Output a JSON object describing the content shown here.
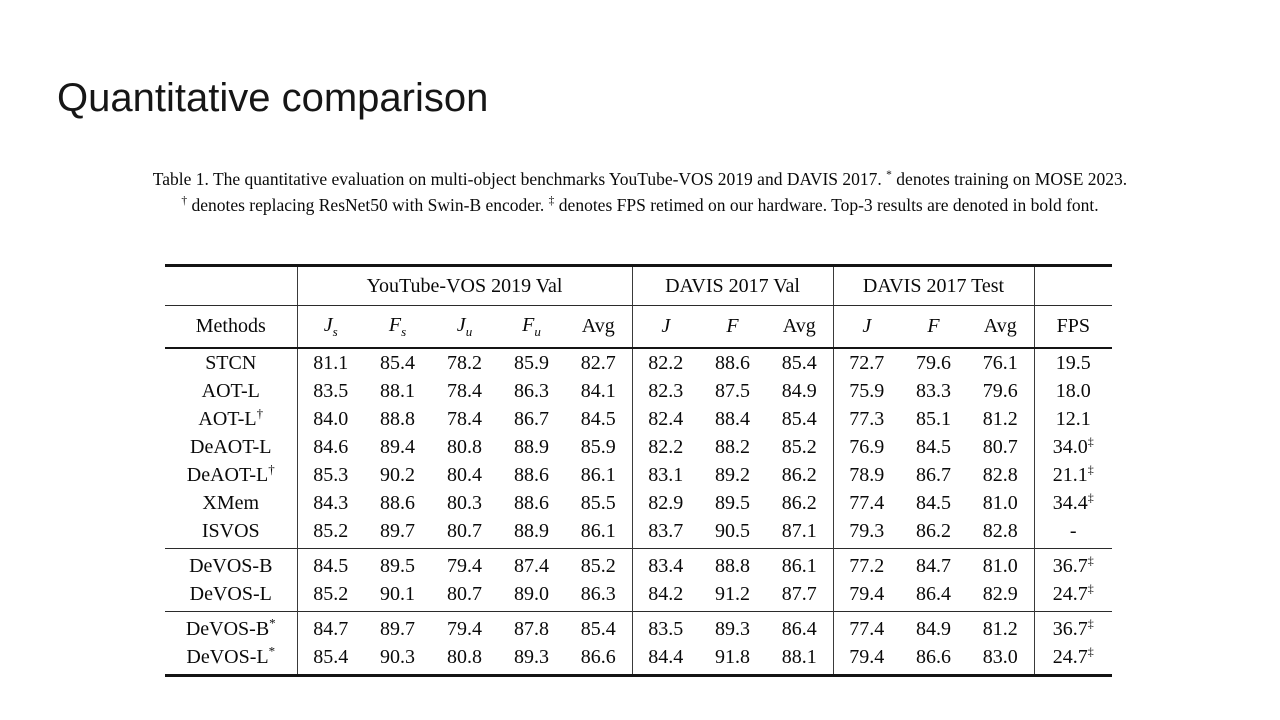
{
  "slide": {
    "title": "Quantitative comparison"
  },
  "caption": {
    "lines": [
      [
        {
          "t": "Table 1. The quantitative evaluation on multi-object benchmarks YouTube-VOS 2019 and DAVIS 2017. "
        },
        {
          "t": "*",
          "sup": true
        },
        {
          "t": " denotes training on MOSE 2023."
        }
      ],
      [
        {
          "t": "†",
          "sup": true
        },
        {
          "t": " denotes replacing ResNet50 with Swin-B encoder. "
        },
        {
          "t": "‡",
          "sup": true
        },
        {
          "t": " denotes FPS retimed on our hardware. Top-3 results are denoted in bold font."
        }
      ]
    ]
  },
  "table": {
    "group_headers": [
      {
        "label": "",
        "span": 1,
        "sep": false
      },
      {
        "label": "YouTube-VOS 2019 Val",
        "span": 5,
        "sep": true
      },
      {
        "label": "DAVIS 2017 Val",
        "span": 3,
        "sep": true
      },
      {
        "label": "DAVIS 2017 Test",
        "span": 3,
        "sep": true
      },
      {
        "label": "",
        "span": 1,
        "sep": true
      }
    ],
    "metric_headers": [
      {
        "text": "Methods"
      },
      {
        "math": "J",
        "sub": "s"
      },
      {
        "math": "F",
        "sub": "s"
      },
      {
        "math": "J",
        "sub": "u"
      },
      {
        "math": "F",
        "sub": "u"
      },
      {
        "text": "Avg"
      },
      {
        "math": "J"
      },
      {
        "math": "F"
      },
      {
        "text": "Avg"
      },
      {
        "math": "J"
      },
      {
        "math": "F"
      },
      {
        "text": "Avg"
      },
      {
        "text": "FPS"
      }
    ],
    "groups": [
      {
        "rows": [
          {
            "method": {
              "name": "STCN"
            },
            "cells": [
              {
                "v": "81.1"
              },
              {
                "v": "85.4"
              },
              {
                "v": "78.2"
              },
              {
                "v": "85.9"
              },
              {
                "v": "82.7"
              },
              {
                "v": "82.2"
              },
              {
                "v": "88.6"
              },
              {
                "v": "85.4"
              },
              {
                "v": "72.7"
              },
              {
                "v": "79.6"
              },
              {
                "v": "76.1"
              },
              {
                "v": "19.5"
              }
            ]
          },
          {
            "method": {
              "name": "AOT-L"
            },
            "cells": [
              {
                "v": "83.5"
              },
              {
                "v": "88.1"
              },
              {
                "v": "78.4"
              },
              {
                "v": "86.3"
              },
              {
                "v": "84.1"
              },
              {
                "v": "82.3"
              },
              {
                "v": "87.5"
              },
              {
                "v": "84.9"
              },
              {
                "v": "75.9"
              },
              {
                "v": "83.3"
              },
              {
                "v": "79.6"
              },
              {
                "v": "18.0"
              }
            ]
          },
          {
            "method": {
              "name": "AOT-L",
              "sup": "†"
            },
            "cells": [
              {
                "v": "84.0"
              },
              {
                "v": "88.8"
              },
              {
                "v": "78.4"
              },
              {
                "v": "86.7"
              },
              {
                "v": "84.5"
              },
              {
                "v": "82.4"
              },
              {
                "v": "88.4"
              },
              {
                "v": "85.4"
              },
              {
                "v": "77.3"
              },
              {
                "v": "85.1"
              },
              {
                "v": "81.2"
              },
              {
                "v": "12.1"
              }
            ]
          },
          {
            "method": {
              "name": "DeAOT-L"
            },
            "cells": [
              {
                "v": "84.6"
              },
              {
                "v": "89.4"
              },
              {
                "v": "80.8"
              },
              {
                "v": "88.9"
              },
              {
                "v": "85.9"
              },
              {
                "v": "82.2"
              },
              {
                "v": "88.2"
              },
              {
                "v": "85.2"
              },
              {
                "v": "76.9"
              },
              {
                "v": "84.5"
              },
              {
                "v": "80.7"
              },
              {
                "v": "34.0",
                "sup": "‡"
              }
            ]
          },
          {
            "method": {
              "name": "DeAOT-L",
              "sup": "†"
            },
            "cells": [
              {
                "v": "85.3"
              },
              {
                "v": "90.2"
              },
              {
                "v": "80.4"
              },
              {
                "v": "88.6"
              },
              {
                "v": "86.1",
                "b": true
              },
              {
                "v": "83.1"
              },
              {
                "v": "89.2"
              },
              {
                "v": "86.2"
              },
              {
                "v": "78.9"
              },
              {
                "v": "86.7"
              },
              {
                "v": "82.8",
                "b": true
              },
              {
                "v": "21.1",
                "sup": "‡"
              }
            ]
          },
          {
            "method": {
              "name": "XMem"
            },
            "cells": [
              {
                "v": "84.3"
              },
              {
                "v": "88.6"
              },
              {
                "v": "80.3"
              },
              {
                "v": "88.6"
              },
              {
                "v": "85.5"
              },
              {
                "v": "82.9"
              },
              {
                "v": "89.5"
              },
              {
                "v": "86.2"
              },
              {
                "v": "77.4"
              },
              {
                "v": "84.5"
              },
              {
                "v": "81.0"
              },
              {
                "v": "34.4",
                "sup": "‡"
              }
            ]
          },
          {
            "method": {
              "name": "ISVOS"
            },
            "cells": [
              {
                "v": "85.2"
              },
              {
                "v": "89.7"
              },
              {
                "v": "80.7"
              },
              {
                "v": "88.9"
              },
              {
                "v": "86.1",
                "b": true
              },
              {
                "v": "83.7"
              },
              {
                "v": "90.5"
              },
              {
                "v": "87.1",
                "b": true
              },
              {
                "v": "79.3"
              },
              {
                "v": "86.2"
              },
              {
                "v": "82.8",
                "b": true
              },
              {
                "v": "-"
              }
            ]
          }
        ]
      },
      {
        "rows": [
          {
            "method": {
              "name": "DeVOS-B",
              "b": true
            },
            "cells": [
              {
                "v": "84.5"
              },
              {
                "v": "89.5"
              },
              {
                "v": "79.4"
              },
              {
                "v": "87.4"
              },
              {
                "v": "85.2"
              },
              {
                "v": "83.4"
              },
              {
                "v": "88.8"
              },
              {
                "v": "86.1"
              },
              {
                "v": "77.2"
              },
              {
                "v": "84.7"
              },
              {
                "v": "81.0"
              },
              {
                "v": "36.7",
                "sup": "‡"
              }
            ]
          },
          {
            "method": {
              "name": "DeVOS-L",
              "b": true
            },
            "cells": [
              {
                "v": "85.2"
              },
              {
                "v": "90.1"
              },
              {
                "v": "80.7"
              },
              {
                "v": "89.0"
              },
              {
                "v": "86.3",
                "b": true
              },
              {
                "v": "84.2"
              },
              {
                "v": "91.2"
              },
              {
                "v": "87.7",
                "b": true
              },
              {
                "v": "79.4"
              },
              {
                "v": "86.4"
              },
              {
                "v": "82.9",
                "b": true
              },
              {
                "v": "24.7",
                "sup": "‡"
              }
            ]
          }
        ]
      },
      {
        "rows": [
          {
            "method": {
              "name": "DeVOS-B",
              "b": true,
              "sup": "*"
            },
            "cells": [
              {
                "v": "84.7"
              },
              {
                "v": "89.7"
              },
              {
                "v": "79.4"
              },
              {
                "v": "87.8"
              },
              {
                "v": "85.4"
              },
              {
                "v": "83.5"
              },
              {
                "v": "89.3"
              },
              {
                "v": "86.4"
              },
              {
                "v": "77.4"
              },
              {
                "v": "84.9"
              },
              {
                "v": "81.2"
              },
              {
                "v": "36.7",
                "sup": "‡"
              }
            ]
          },
          {
            "method": {
              "name": "DeVOS-L",
              "b": true,
              "sup": "*"
            },
            "cells": [
              {
                "v": "85.4"
              },
              {
                "v": "90.3"
              },
              {
                "v": "80.8"
              },
              {
                "v": "89.3"
              },
              {
                "v": "86.6",
                "b": true
              },
              {
                "v": "84.4"
              },
              {
                "v": "91.8"
              },
              {
                "v": "88.1",
                "b": true
              },
              {
                "v": "79.4"
              },
              {
                "v": "86.6"
              },
              {
                "v": "83.0",
                "b": true
              },
              {
                "v": "24.7",
                "sup": "‡"
              }
            ]
          }
        ]
      }
    ]
  }
}
